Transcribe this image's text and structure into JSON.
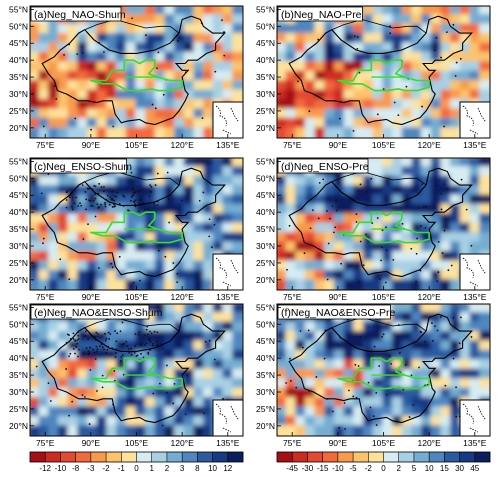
{
  "chart_data": {
    "type": "heatmap",
    "layout": "3 rows x 2 columns of map panels with two shared colorbars",
    "longitude_ticks": [
      "75°E",
      "90°E",
      "105°E",
      "120°E",
      "135°E"
    ],
    "latitude_ticks": [
      "55°N",
      "50°N",
      "45°N",
      "40°N",
      "35°N",
      "30°N",
      "25°N",
      "20°N"
    ],
    "panels": [
      {
        "label": "(a)Neg_NAO-Shum",
        "variable": "Shum",
        "dominant_sign": "mixed",
        "stippling": "sparse"
      },
      {
        "label": "(b)Neg_NAO-Pre",
        "variable": "Pre",
        "dominant_sign": "mixed",
        "stippling": "sparse"
      },
      {
        "label": "(c)Neg_ENSO-Shum",
        "variable": "Shum",
        "dominant_sign": "negative",
        "stippling": "dense north"
      },
      {
        "label": "(d)Neg_ENSO-Pre",
        "variable": "Pre",
        "dominant_sign": "negative",
        "stippling": "moderate"
      },
      {
        "label": "(e)Neg_NAO&ENSO-Shum",
        "variable": "Shum",
        "dominant_sign": "negative",
        "stippling": "dense north"
      },
      {
        "label": "(f)Neg_NAO&ENSO-Pre",
        "variable": "Pre",
        "dominant_sign": "negative",
        "stippling": "moderate"
      }
    ],
    "colorbars": [
      {
        "for": "Shum",
        "levels": [
          "-12",
          "-10",
          "-8",
          "-3",
          "-2",
          "-1",
          "0",
          "1",
          "2",
          "3",
          "8",
          "10",
          "12"
        ]
      },
      {
        "for": "Pre",
        "levels": [
          "-45",
          "-30",
          "-15",
          "-10",
          "-5",
          "-2",
          "0",
          "2",
          "5",
          "10",
          "15",
          "30",
          "45"
        ]
      }
    ],
    "palette": [
      "#a50f15",
      "#cb2b20",
      "#e34a33",
      "#f26a3c",
      "#f89a4d",
      "#fcc36c",
      "#fde29b",
      "#d6ecf2",
      "#a7d0e4",
      "#74add1",
      "#4f86c0",
      "#2c5aa0",
      "#173a85",
      "#0b1f5e"
    ],
    "boundary_color": "#000000",
    "region_outline_color": "#33dd33"
  }
}
